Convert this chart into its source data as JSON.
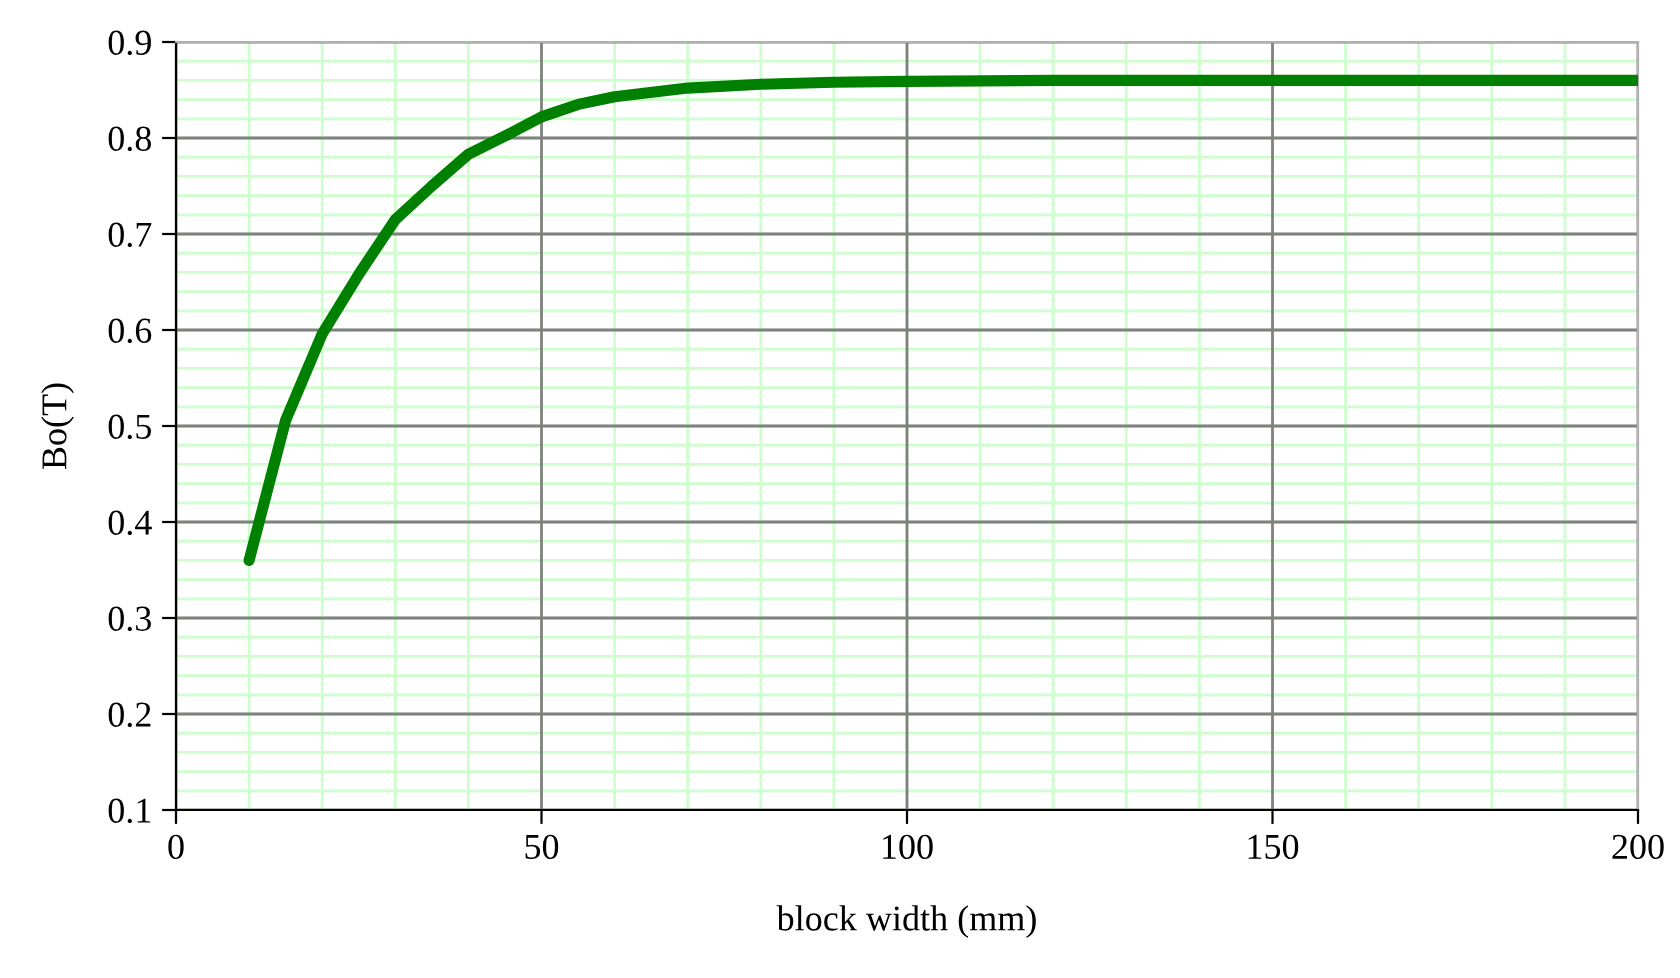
{
  "chart_data": {
    "type": "line",
    "xlabel": "block width (mm)",
    "ylabel": "Bo(T)",
    "x": [
      10,
      15,
      20,
      25,
      30,
      35,
      40,
      45,
      50,
      55,
      60,
      70,
      80,
      90,
      100,
      120,
      150,
      180,
      200
    ],
    "series": [
      {
        "color": "#008000",
        "values": [
          0.36,
          0.506,
          0.596,
          0.658,
          0.715,
          0.75,
          0.783,
          0.802,
          0.822,
          0.835,
          0.843,
          0.852,
          0.856,
          0.858,
          0.859,
          0.86,
          0.86,
          0.86,
          0.86
        ]
      }
    ],
    "xlim": [
      0,
      200
    ],
    "xticks": [
      0,
      50,
      100,
      150,
      200
    ],
    "ylim": [
      0.1,
      0.9
    ],
    "yticks": [
      0.1,
      0.2,
      0.3,
      0.4,
      0.5,
      0.6,
      0.7,
      0.8,
      0.9
    ],
    "grid": true,
    "marker": "none",
    "line_style": "solid",
    "legend": false
  }
}
